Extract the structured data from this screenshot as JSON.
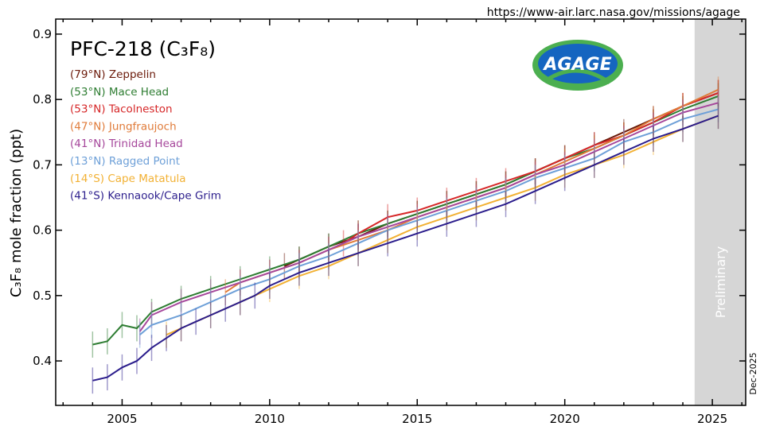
{
  "chart_data": {
    "type": "line",
    "title": "PFC-218 (C₃F₈)",
    "ylabel": "C₃F₈ mole fraction (ppt)",
    "xlabel": "",
    "source_url": "https://www-air.larc.nasa.gov/missions/agage",
    "date_stamp": "Dec-2025",
    "logo_text": "AGAGE",
    "preliminary_label": "Preliminary",
    "preliminary_start": 2024.4,
    "xlim": [
      2002.75,
      2026.13
    ],
    "ylim": [
      0.332,
      0.923
    ],
    "x_ticks": [
      2005,
      2010,
      2015,
      2020,
      2025
    ],
    "x_tick_labels": [
      "2005",
      "2010",
      "2015",
      "2020",
      "2025"
    ],
    "y_ticks": [
      0.4,
      0.5,
      0.6,
      0.7,
      0.8,
      0.9
    ],
    "y_tick_labels": [
      "0.4",
      "0.5",
      "0.6",
      "0.7",
      "0.8",
      "0.9"
    ],
    "grid": false,
    "legend_placement": "top-left",
    "error_bar": 0.02,
    "series": [
      {
        "name": "(79°N) Zeppelin",
        "color": "#6b1a0a",
        "x": [
          2010.5,
          2011,
          2012,
          2013,
          2014,
          2015,
          2016,
          2017,
          2018,
          2019,
          2020,
          2021,
          2022,
          2023,
          2024,
          2025.2
        ],
        "y": [
          0.545,
          0.555,
          0.575,
          0.59,
          0.61,
          0.625,
          0.64,
          0.655,
          0.67,
          0.69,
          0.71,
          0.73,
          0.75,
          0.77,
          0.79,
          0.81
        ]
      },
      {
        "name": "(53°N) Mace Head",
        "color": "#2e7d32",
        "x": [
          2004,
          2004.5,
          2005,
          2005.5,
          2006,
          2007,
          2008,
          2009,
          2010,
          2011,
          2012,
          2013,
          2014,
          2015,
          2016,
          2017,
          2018,
          2019,
          2020,
          2021,
          2022,
          2023,
          2024,
          2025.2
        ],
        "y": [
          0.425,
          0.43,
          0.455,
          0.45,
          0.475,
          0.495,
          0.51,
          0.525,
          0.54,
          0.555,
          0.575,
          0.595,
          0.61,
          0.625,
          0.64,
          0.655,
          0.67,
          0.69,
          0.71,
          0.725,
          0.745,
          0.765,
          0.785,
          0.805
        ]
      },
      {
        "name": "(53°N) Tacolneston",
        "color": "#d62728",
        "x": [
          2012.5,
          2013,
          2014,
          2015,
          2016,
          2017,
          2018,
          2019,
          2020,
          2021,
          2022,
          2023,
          2024,
          2025.2
        ],
        "y": [
          0.58,
          0.595,
          0.62,
          0.63,
          0.645,
          0.66,
          0.675,
          0.69,
          0.71,
          0.73,
          0.745,
          0.765,
          0.79,
          0.81
        ]
      },
      {
        "name": "(47°N) Jungfraujoch",
        "color": "#e07b39",
        "x": [
          2008.5,
          2009,
          2010,
          2011,
          2012,
          2013,
          2014,
          2015,
          2016,
          2017,
          2018,
          2019,
          2020,
          2021,
          2022,
          2023,
          2024,
          2025.2
        ],
        "y": [
          0.505,
          0.52,
          0.535,
          0.55,
          0.57,
          0.585,
          0.6,
          0.62,
          0.635,
          0.65,
          0.665,
          0.685,
          0.705,
          0.725,
          0.745,
          0.77,
          0.79,
          0.815
        ]
      },
      {
        "name": "(41°N) Trinidad Head",
        "color": "#a6479b",
        "x": [
          2005.6,
          2006,
          2007,
          2008,
          2009,
          2010,
          2011,
          2012,
          2013,
          2014,
          2015,
          2016,
          2017,
          2018,
          2019,
          2020,
          2021,
          2022,
          2023,
          2024,
          2025.2
        ],
        "y": [
          0.445,
          0.47,
          0.49,
          0.505,
          0.52,
          0.535,
          0.55,
          0.57,
          0.59,
          0.605,
          0.62,
          0.635,
          0.65,
          0.665,
          0.685,
          0.7,
          0.72,
          0.74,
          0.76,
          0.78,
          0.795
        ]
      },
      {
        "name": "(13°N) Ragged Point",
        "color": "#6ea0d8",
        "x": [
          2005.6,
          2006,
          2007,
          2008,
          2009,
          2010,
          2011,
          2012,
          2013,
          2014,
          2015,
          2016,
          2017,
          2018,
          2019,
          2020,
          2021,
          2022,
          2023,
          2024,
          2025.2
        ],
        "y": [
          0.44,
          0.455,
          0.47,
          0.49,
          0.51,
          0.525,
          0.545,
          0.56,
          0.58,
          0.6,
          0.615,
          0.63,
          0.645,
          0.66,
          0.68,
          0.695,
          0.71,
          0.735,
          0.75,
          0.77,
          0.785
        ]
      },
      {
        "name": "(14°S) Cape Matatula",
        "color": "#f2b134",
        "x": [
          2006.5,
          2007,
          2008,
          2009,
          2010,
          2011,
          2012,
          2013,
          2014,
          2015,
          2016,
          2017,
          2018,
          2019,
          2020,
          2021,
          2022,
          2023,
          2024,
          2025.2
        ],
        "y": [
          0.44,
          0.45,
          0.47,
          0.49,
          0.51,
          0.53,
          0.545,
          0.565,
          0.585,
          0.605,
          0.62,
          0.635,
          0.65,
          0.665,
          0.685,
          0.7,
          0.715,
          0.735,
          0.755,
          0.775
        ]
      },
      {
        "name": "(41°S) Kennaook/Cape Grim",
        "color": "#2b1d8c",
        "x": [
          2004,
          2004.5,
          2005,
          2005.5,
          2006,
          2006.5,
          2007,
          2007.5,
          2008,
          2008.5,
          2009,
          2009.5,
          2010,
          2011,
          2012,
          2013,
          2014,
          2015,
          2016,
          2017,
          2018,
          2019,
          2020,
          2021,
          2022,
          2023,
          2024,
          2025.2
        ],
        "y": [
          0.37,
          0.375,
          0.39,
          0.4,
          0.42,
          0.435,
          0.45,
          0.46,
          0.47,
          0.48,
          0.49,
          0.5,
          0.515,
          0.535,
          0.55,
          0.565,
          0.58,
          0.595,
          0.61,
          0.625,
          0.64,
          0.66,
          0.68,
          0.7,
          0.72,
          0.74,
          0.755,
          0.775
        ]
      }
    ]
  }
}
